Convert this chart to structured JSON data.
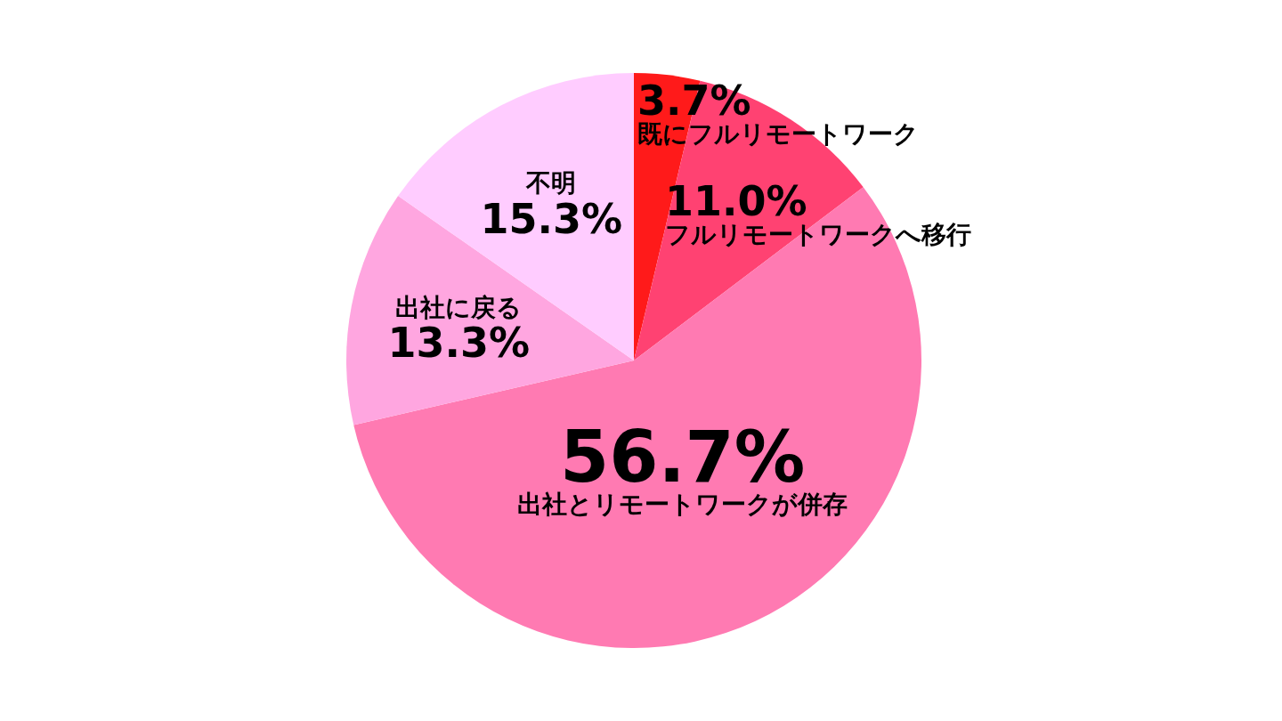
{
  "chart_data": {
    "type": "pie",
    "categories": [
      "既にフルリモートワーク",
      "フルリモートワークへ移行",
      "出社とリモートワークが併存",
      "出社に戻る",
      "不明"
    ],
    "values": [
      3.7,
      11.0,
      56.7,
      13.3,
      15.3
    ],
    "value_labels": [
      "3.7%",
      "11.0%",
      "56.7%",
      "13.3%",
      "15.3%"
    ],
    "colors": [
      "#ff1a1a",
      "#ff4272",
      "#ff7ab2",
      "#ffa6e0",
      "#ffccff"
    ]
  }
}
